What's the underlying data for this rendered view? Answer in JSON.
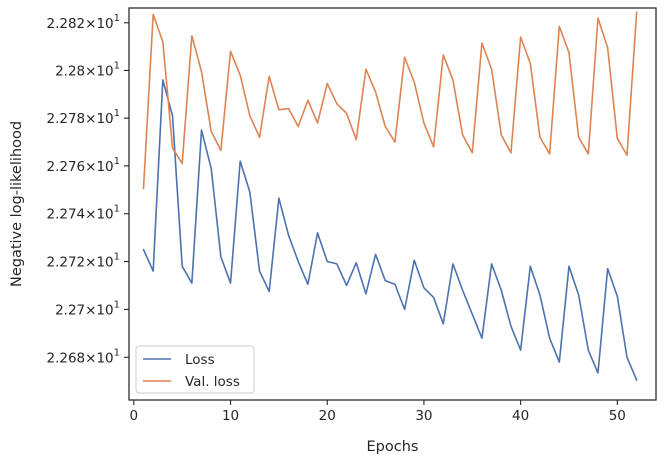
{
  "chart_data": {
    "type": "line",
    "xlabel": "Epochs",
    "ylabel": "Negative log-likelihood",
    "xlim": [
      -0.5,
      54.0
    ],
    "ylim": [
      22.6622,
      22.8262
    ],
    "yscale": "log",
    "x_ticks": [
      0,
      10,
      20,
      30,
      40,
      50
    ],
    "x_tick_labels": [
      "0",
      "10",
      "20",
      "30",
      "40",
      "50"
    ],
    "y_ticks": [
      22.68,
      22.7,
      22.72,
      22.74,
      22.76,
      22.78,
      22.8,
      22.82
    ],
    "y_tick_mantissas": [
      "2.268",
      "2.27",
      "2.272",
      "2.274",
      "2.276",
      "2.278",
      "2.28",
      "2.282"
    ],
    "y_tick_base": "10",
    "y_tick_exponent": "1",
    "y_tick_times": "×",
    "grid": false,
    "legend_position": "lower-left",
    "x": [
      1,
      2,
      3,
      4,
      5,
      6,
      7,
      8,
      9,
      10,
      11,
      12,
      13,
      14,
      15,
      16,
      17,
      18,
      19,
      20,
      21,
      22,
      23,
      24,
      25,
      26,
      27,
      28,
      29,
      30,
      31,
      32,
      33,
      34,
      35,
      36,
      37,
      38,
      39,
      40,
      41,
      42,
      43,
      44,
      45,
      46,
      47,
      48,
      49,
      50,
      51,
      52
    ],
    "series": [
      {
        "name": "Loss",
        "color": "#4c72b0",
        "values": [
          22.725,
          22.716,
          22.796,
          22.781,
          22.718,
          22.711,
          22.775,
          22.759,
          22.722,
          22.711,
          22.762,
          22.749,
          22.716,
          22.7075,
          22.7465,
          22.731,
          22.72,
          22.7105,
          22.732,
          22.72,
          22.719,
          22.71,
          22.7195,
          22.7065,
          22.723,
          22.712,
          22.7105,
          22.7,
          22.7205,
          22.709,
          22.705,
          22.694,
          22.719,
          22.708,
          22.698,
          22.688,
          22.719,
          22.708,
          22.693,
          22.683,
          22.718,
          22.706,
          22.688,
          22.678,
          22.718,
          22.706,
          22.683,
          22.6735,
          22.717,
          22.7055,
          22.68,
          22.6705
        ]
      },
      {
        "name": "Val. loss",
        "color": "#dd8452",
        "values": [
          22.7505,
          22.8235,
          22.812,
          22.7675,
          22.761,
          22.8145,
          22.7995,
          22.7745,
          22.7665,
          22.808,
          22.798,
          22.781,
          22.772,
          22.7975,
          22.7835,
          22.784,
          22.7765,
          22.7875,
          22.778,
          22.7945,
          22.786,
          22.782,
          22.771,
          22.8005,
          22.791,
          22.7765,
          22.77,
          22.8055,
          22.795,
          22.778,
          22.768,
          22.8065,
          22.796,
          22.773,
          22.7655,
          22.8115,
          22.8005,
          22.773,
          22.7655,
          22.814,
          22.803,
          22.772,
          22.765,
          22.8185,
          22.8075,
          22.772,
          22.765,
          22.822,
          22.8095,
          22.7715,
          22.7645,
          22.8245
        ]
      }
    ]
  }
}
